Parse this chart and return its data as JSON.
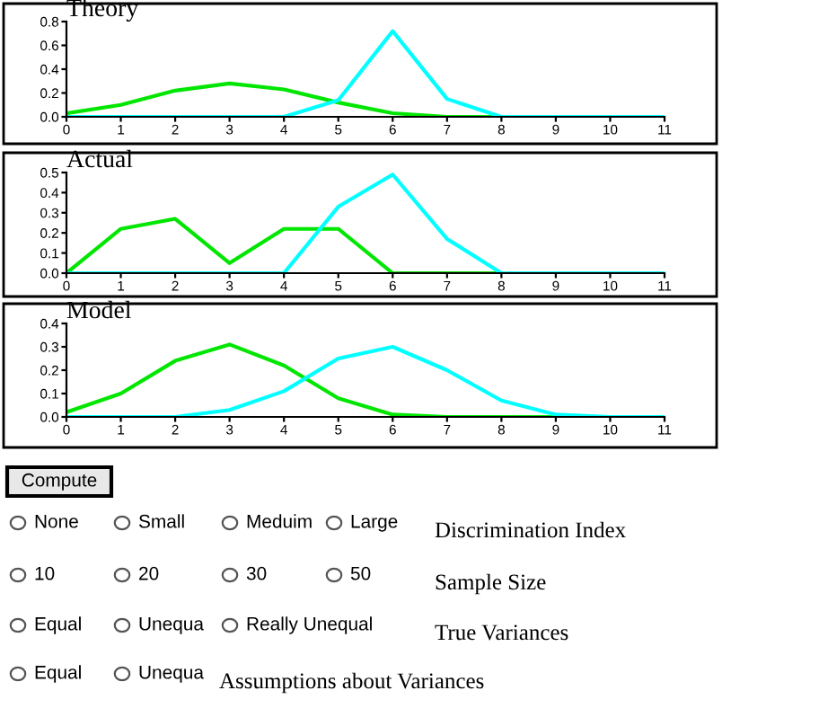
{
  "chart_data": [
    {
      "type": "line",
      "title": "Theory",
      "x": [
        0,
        1,
        2,
        3,
        4,
        5,
        6,
        7,
        8,
        9,
        10,
        11
      ],
      "xlim": [
        0,
        11
      ],
      "xticks": [
        0,
        1,
        2,
        3,
        4,
        5,
        6,
        7,
        8,
        9,
        10,
        11
      ],
      "ylim": [
        0,
        0.8
      ],
      "yticks": [
        {
          "value": 0,
          "label": "0.0"
        },
        {
          "value": 0.2,
          "label": "0.2"
        },
        {
          "value": 0.4,
          "label": "0.4"
        },
        {
          "value": 0.6,
          "label": "0.6"
        },
        {
          "value": 0.8,
          "label": "0.8"
        }
      ],
      "grid": false,
      "legend": false,
      "marker": "none",
      "line_style": "solid",
      "series": [
        {
          "color": "#00e600",
          "values": [
            0.03,
            0.1,
            0.22,
            0.28,
            0.23,
            0.12,
            0.03,
            0,
            0,
            0,
            null,
            null
          ]
        },
        {
          "color": "#00ffff",
          "values": [
            0,
            0,
            0,
            0,
            0,
            0.14,
            0.72,
            0.15,
            0,
            0,
            0,
            0
          ]
        }
      ]
    },
    {
      "type": "line",
      "title": "Actual",
      "x": [
        0,
        1,
        2,
        3,
        4,
        5,
        6,
        7,
        8,
        9,
        10,
        11
      ],
      "xlim": [
        0,
        11
      ],
      "xticks": [
        0,
        1,
        2,
        3,
        4,
        5,
        6,
        7,
        8,
        9,
        10,
        11
      ],
      "ylim": [
        0,
        0.5
      ],
      "yticks": [
        {
          "value": 0,
          "label": "0.0"
        },
        0.1,
        0.2,
        0.3,
        0.4,
        0.5
      ],
      "grid": false,
      "legend": false,
      "marker": "none",
      "line_style": "solid",
      "series": [
        {
          "color": "#00e600",
          "values": [
            0,
            0.22,
            0.27,
            0.05,
            0.22,
            0.22,
            0,
            0,
            0,
            0,
            null,
            null
          ]
        },
        {
          "color": "#00ffff",
          "values": [
            0,
            0,
            0,
            0,
            0,
            0.33,
            0.49,
            0.17,
            0,
            0,
            0,
            0
          ]
        }
      ]
    },
    {
      "type": "line",
      "title": "Model",
      "x": [
        0,
        1,
        2,
        3,
        4,
        5,
        6,
        7,
        8,
        9,
        10,
        11
      ],
      "xlim": [
        0,
        11
      ],
      "xticks": [
        0,
        1,
        2,
        3,
        4,
        5,
        6,
        7,
        8,
        9,
        10,
        11
      ],
      "ylim": [
        0,
        0.4
      ],
      "yticks": [
        {
          "value": 0,
          "label": "0.0"
        },
        0.1,
        0.2,
        0.3,
        0.4
      ],
      "grid": false,
      "legend": false,
      "marker": "none",
      "line_style": "solid",
      "series": [
        {
          "color": "#00e600",
          "values": [
            0.02,
            0.1,
            0.24,
            0.31,
            0.22,
            0.08,
            0.01,
            0,
            0,
            0,
            0,
            0
          ]
        },
        {
          "color": "#00ffff",
          "values": [
            0,
            0,
            0,
            0.03,
            0.11,
            0.25,
            0.3,
            0.2,
            0.07,
            0.01,
            0,
            0
          ]
        }
      ]
    },
    {
      "type": "other",
      "annotations": [
        "Compute",
        "None",
        "Small",
        "Meduim",
        "Large",
        "Discrimination Index",
        "10",
        "20",
        "30",
        "50",
        "Sample Size",
        "Equal",
        "Unequa",
        "Really Unequal",
        "True Variances",
        "Equal",
        "Unequa",
        "Assumptions about Variances"
      ]
    }
  ]
}
